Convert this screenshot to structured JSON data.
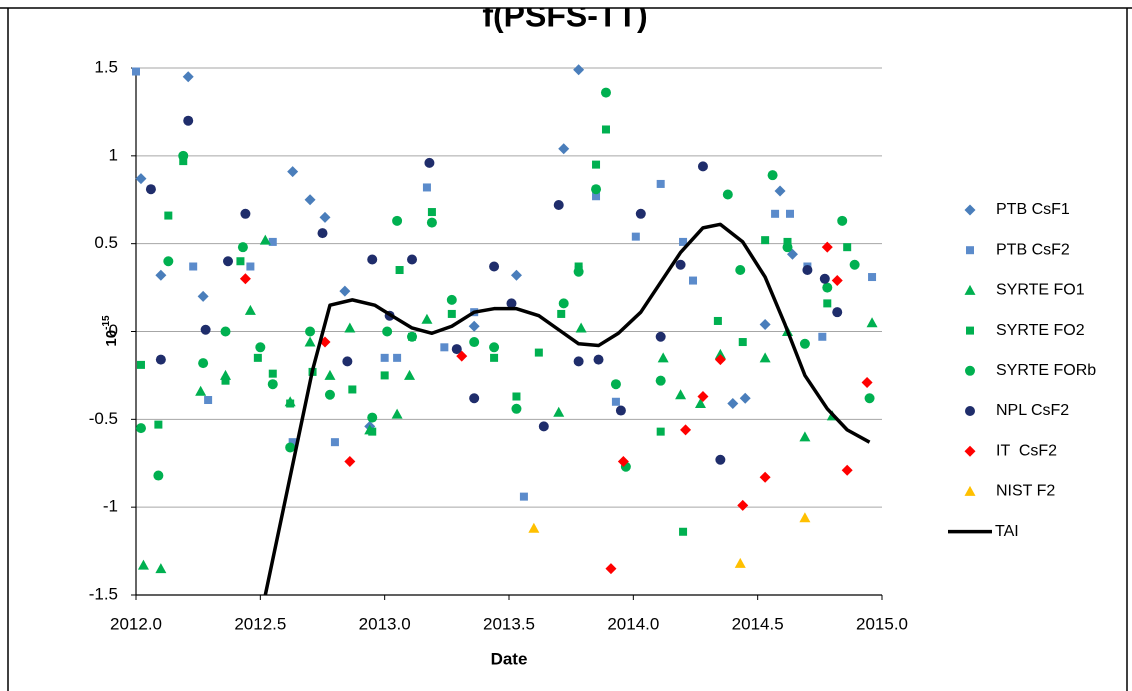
{
  "chart_data": {
    "type": "scatter",
    "title": "f(PSFS-TT)",
    "x_label": "Date",
    "y_label": {
      "base": "10",
      "exponent": "-15"
    },
    "xlim": [
      2012,
      2015
    ],
    "xticks": [
      {
        "value": 2012,
        "label": "2012.0"
      },
      {
        "value": 2012.5,
        "label": "2012.5"
      },
      {
        "value": 2013,
        "label": "2013.0"
      },
      {
        "value": 2013.5,
        "label": "2013.5"
      },
      {
        "value": 2014,
        "label": "2014.0"
      },
      {
        "value": 2014.5,
        "label": "2014.5"
      },
      {
        "value": 2015,
        "label": "2015.0"
      }
    ],
    "ylim": [
      -1.5,
      1.5
    ],
    "yticks": [
      1.5,
      1,
      0.5,
      0,
      -0.5,
      -1,
      -1.5
    ],
    "grid": true,
    "legend": "right",
    "series": [
      {
        "name": "PTB CsF1",
        "color": "#4a7ebb",
        "marker": "diamond",
        "x": [
          2012.02,
          2012.1,
          2012.21,
          2012.27,
          2012.63,
          2012.7,
          2012.76,
          2012.84,
          2012.94,
          2013.36,
          2013.53,
          2013.72,
          2013.78,
          2014.4,
          2014.45,
          2014.53,
          2014.59,
          2014.64
        ],
        "values": [
          0.87,
          0.32,
          1.45,
          0.2,
          0.91,
          0.75,
          0.65,
          0.23,
          -0.54,
          0.03,
          0.32,
          1.04,
          1.49,
          -0.41,
          -0.38,
          0.04,
          0.8,
          0.44
        ]
      },
      {
        "name": "PTB CsF2",
        "color": "#5b8bcb",
        "marker": "square",
        "x": [
          2012.0,
          2012.23,
          2012.29,
          2012.46,
          2012.55,
          2012.63,
          2012.8,
          2013.0,
          2013.05,
          2013.17,
          2013.24,
          2013.36,
          2013.56,
          2013.78,
          2013.85,
          2013.93,
          2014.01,
          2014.11,
          2014.2,
          2014.24,
          2014.57,
          2014.63,
          2014.7,
          2014.76,
          2014.96
        ],
        "values": [
          1.48,
          0.37,
          -0.39,
          0.37,
          0.51,
          -0.63,
          -0.63,
          -0.15,
          -0.15,
          0.82,
          -0.09,
          0.11,
          -0.94,
          0.35,
          0.77,
          -0.4,
          0.54,
          0.84,
          0.51,
          0.29,
          0.67,
          0.67,
          0.37,
          -0.03,
          0.31
        ]
      },
      {
        "name": "SYRTE FO1",
        "color": "#00b050",
        "marker": "triangle",
        "x": [
          2012.03,
          2012.1,
          2012.26,
          2012.36,
          2012.46,
          2012.52,
          2012.62,
          2012.7,
          2012.78,
          2012.86,
          2012.94,
          2013.05,
          2013.1,
          2013.17,
          2013.7,
          2013.79,
          2014.12,
          2014.19,
          2014.27,
          2014.35,
          2014.53,
          2014.62,
          2014.69,
          2014.8,
          2014.96
        ],
        "values": [
          -1.33,
          -1.35,
          -0.34,
          -0.25,
          0.12,
          0.52,
          -0.4,
          -0.06,
          -0.25,
          0.02,
          -0.56,
          -0.47,
          -0.25,
          0.07,
          -0.46,
          0.02,
          -0.15,
          -0.36,
          -0.41,
          -0.13,
          -0.15,
          0.0,
          -0.6,
          -0.48,
          0.05
        ]
      },
      {
        "name": "SYRTE FO2",
        "color": "#00b050",
        "marker": "square",
        "x": [
          2012.02,
          2012.09,
          2012.13,
          2012.19,
          2012.36,
          2012.42,
          2012.49,
          2012.55,
          2012.62,
          2012.71,
          2012.87,
          2012.95,
          2013.0,
          2013.06,
          2013.11,
          2013.19,
          2013.27,
          2013.44,
          2013.53,
          2013.62,
          2013.71,
          2013.78,
          2013.85,
          2013.89,
          2014.11,
          2014.2,
          2014.34,
          2014.44,
          2014.53,
          2014.62,
          2014.78,
          2014.86
        ],
        "values": [
          -0.19,
          -0.53,
          0.66,
          0.97,
          -0.28,
          0.4,
          -0.15,
          -0.24,
          -0.41,
          -0.23,
          -0.33,
          -0.57,
          -0.25,
          0.35,
          -0.03,
          0.68,
          0.1,
          -0.15,
          -0.37,
          -0.12,
          0.1,
          0.37,
          0.95,
          1.15,
          -0.57,
          -1.14,
          0.06,
          -0.06,
          0.52,
          0.51,
          0.16,
          0.48
        ]
      },
      {
        "name": "SYRTE FORb",
        "color": "#00b050",
        "marker": "circle",
        "x": [
          2012.02,
          2012.09,
          2012.13,
          2012.19,
          2012.27,
          2012.36,
          2012.43,
          2012.5,
          2012.55,
          2012.62,
          2012.7,
          2012.78,
          2012.95,
          2013.01,
          2013.05,
          2013.11,
          2013.19,
          2013.27,
          2013.36,
          2013.44,
          2013.53,
          2013.72,
          2013.78,
          2013.85,
          2013.89,
          2013.93,
          2013.97,
          2014.11,
          2014.38,
          2014.43,
          2014.56,
          2014.62,
          2014.69,
          2014.78,
          2014.84,
          2014.89,
          2014.95
        ],
        "values": [
          -0.55,
          -0.82,
          0.4,
          1.0,
          -0.18,
          0.0,
          0.48,
          -0.09,
          -0.3,
          -0.66,
          0.0,
          -0.36,
          -0.49,
          0.0,
          0.63,
          -0.03,
          0.62,
          0.18,
          -0.06,
          -0.09,
          -0.44,
          0.16,
          0.34,
          0.81,
          1.36,
          -0.3,
          -0.77,
          -0.28,
          0.78,
          0.35,
          0.89,
          0.48,
          -0.07,
          0.25,
          0.63,
          0.38,
          -0.38
        ]
      },
      {
        "name": "NPL CsF2",
        "color": "#1f2d6b",
        "marker": "circle",
        "x": [
          2012.06,
          2012.1,
          2012.21,
          2012.28,
          2012.37,
          2012.44,
          2012.75,
          2012.85,
          2012.95,
          2013.02,
          2013.11,
          2013.18,
          2013.29,
          2013.36,
          2013.44,
          2013.51,
          2013.64,
          2013.7,
          2013.78,
          2013.86,
          2013.95,
          2014.03,
          2014.11,
          2014.19,
          2014.28,
          2014.35,
          2014.7,
          2014.77,
          2014.82
        ],
        "values": [
          0.81,
          -0.16,
          1.2,
          0.01,
          0.4,
          0.67,
          0.56,
          -0.17,
          0.41,
          0.09,
          0.41,
          0.96,
          -0.1,
          -0.38,
          0.37,
          0.16,
          -0.54,
          0.72,
          -0.17,
          -0.16,
          -0.45,
          0.67,
          -0.03,
          0.38,
          0.94,
          -0.73,
          0.35,
          0.3,
          0.11
        ]
      },
      {
        "name": "IT  CsF2",
        "color": "#ff0000",
        "marker": "diamond",
        "x": [
          2012.44,
          2012.76,
          2012.86,
          2013.31,
          2013.91,
          2013.96,
          2014.21,
          2014.28,
          2014.35,
          2014.44,
          2014.53,
          2014.78,
          2014.82,
          2014.86,
          2014.94
        ],
        "values": [
          0.3,
          -0.06,
          -0.74,
          -0.14,
          -1.35,
          -0.74,
          -0.56,
          -0.37,
          -0.16,
          -0.99,
          -0.83,
          0.48,
          0.29,
          -0.79,
          -0.29
        ]
      },
      {
        "name": "NIST F2",
        "color": "#ffc000",
        "marker": "triangle",
        "x": [
          2013.6,
          2014.43,
          2014.69
        ],
        "values": [
          -1.12,
          -1.32,
          -1.06
        ]
      },
      {
        "name": "TAI",
        "color": "#000000",
        "marker": "line",
        "x": [
          2012.52,
          2012.71,
          2012.78,
          2012.87,
          2012.96,
          2013.04,
          2013.11,
          2013.19,
          2013.27,
          2013.36,
          2013.44,
          2013.53,
          2013.62,
          2013.7,
          2013.78,
          2013.86,
          2013.94,
          2014.03,
          2014.11,
          2014.19,
          2014.28,
          2014.35,
          2014.44,
          2014.53,
          2014.61,
          2014.69,
          2014.78,
          2014.86,
          2014.95
        ],
        "values": [
          -1.5,
          -0.22,
          0.15,
          0.18,
          0.15,
          0.08,
          0.02,
          -0.01,
          0.03,
          0.11,
          0.13,
          0.13,
          0.09,
          0.01,
          -0.07,
          -0.08,
          -0.01,
          0.11,
          0.28,
          0.45,
          0.59,
          0.61,
          0.51,
          0.31,
          0.04,
          -0.25,
          -0.44,
          -0.56,
          -0.63
        ]
      }
    ]
  }
}
